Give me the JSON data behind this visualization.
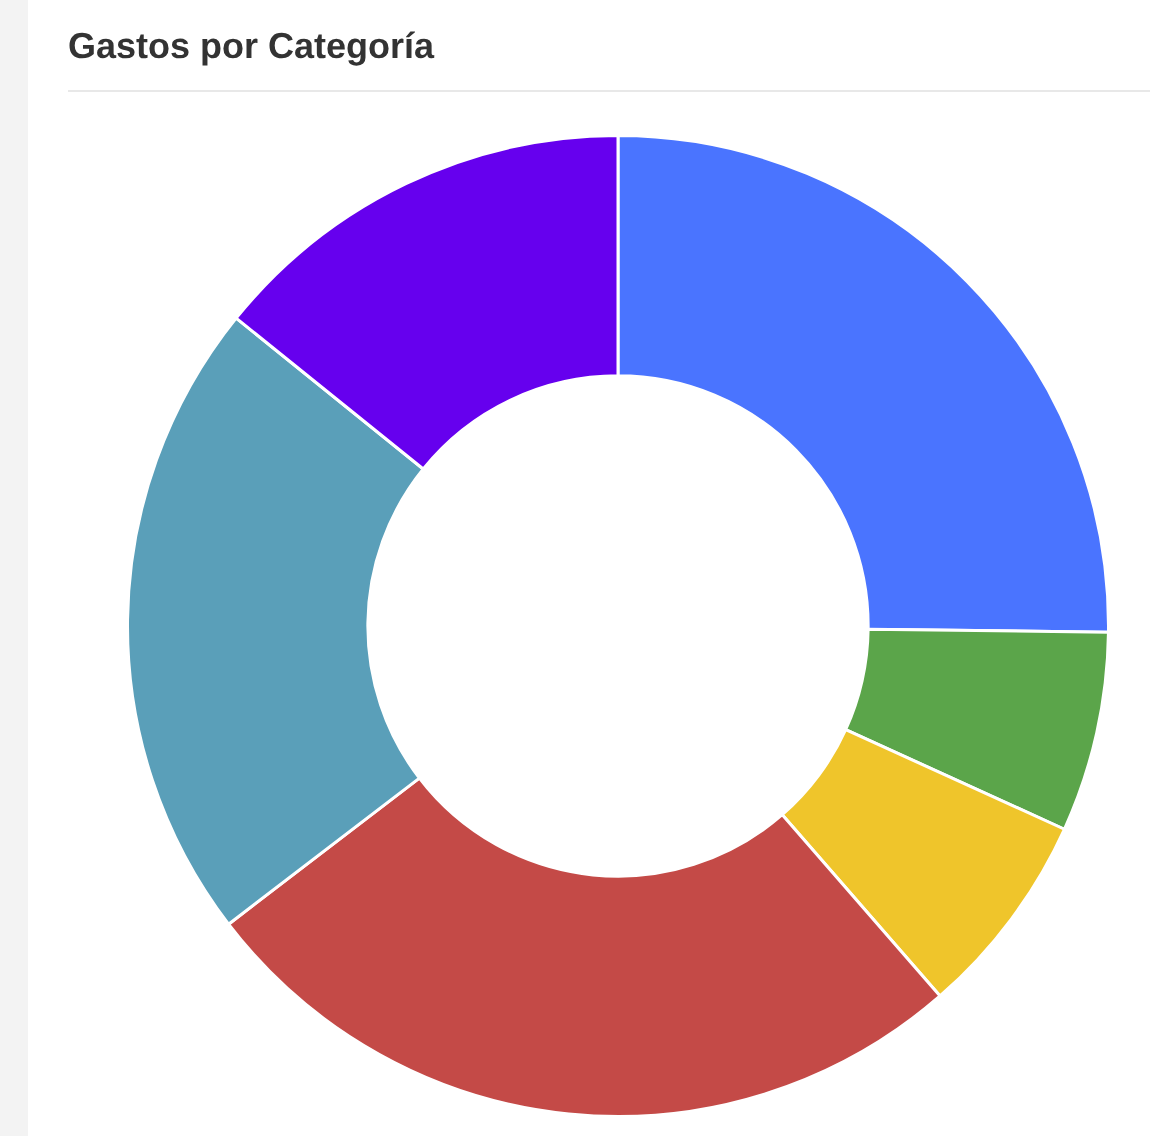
{
  "chart_data": {
    "type": "donut",
    "title": "Gastos por Categoría",
    "categories": [
      null,
      null,
      null,
      null,
      null,
      null
    ],
    "values": [
      25.2,
      6.6,
      6.8,
      26,
      21.2,
      14.2
    ],
    "colors": [
      "#4a74ff",
      "#5ba54a",
      "#efc52b",
      "#c44a47",
      "#5a9fb9",
      "#6600ee"
    ],
    "legend": false
  }
}
